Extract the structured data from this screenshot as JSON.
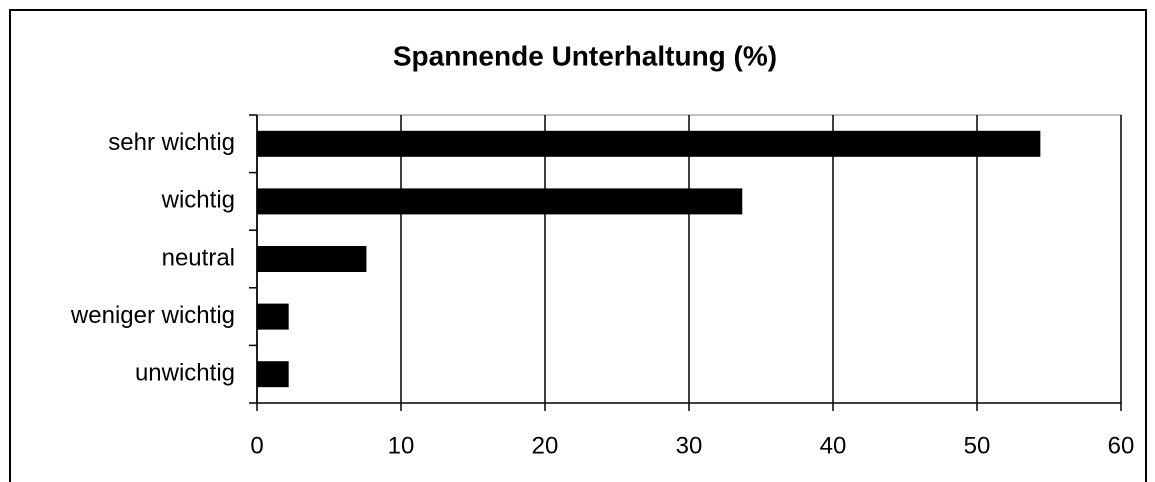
{
  "chart_data": {
    "type": "barh",
    "title": "Spannende Unterhaltung (%)",
    "categories": [
      "sehr wichtig",
      "wichtig",
      "neutral",
      "weniger wichtig",
      "unwichtig"
    ],
    "values": [
      54.4,
      33.7,
      7.6,
      2.2,
      2.2
    ],
    "color": "#000000",
    "xlim": [
      0,
      60
    ],
    "xticks": [
      0,
      10,
      20,
      30,
      40,
      50,
      60
    ],
    "grid": true
  }
}
